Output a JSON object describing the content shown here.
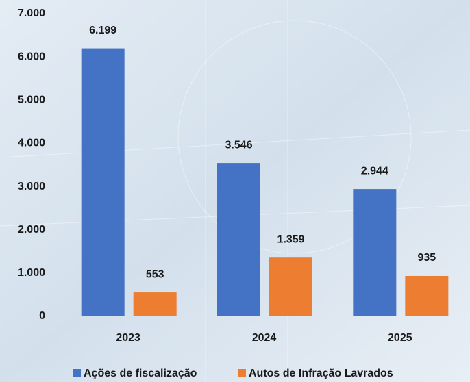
{
  "chart_data": {
    "type": "bar",
    "categories": [
      "2023",
      "2024",
      "2025"
    ],
    "series": [
      {
        "name": "Ações de fiscalização",
        "color": "#4472c4",
        "values": [
          6199,
          3546,
          2944
        ],
        "value_labels": [
          "6.199",
          "3.546",
          "2.944"
        ]
      },
      {
        "name": "Autos de Infração Lavrados",
        "color": "#ed7d31",
        "values": [
          553,
          1359,
          935
        ],
        "value_labels": [
          "553",
          "1.359",
          "935"
        ]
      }
    ],
    "ylim": [
      0,
      7000
    ],
    "yticks": [
      0,
      {
        "value": 1000,
        "label": "1.000"
      },
      {
        "value": 2000,
        "label": "2.000"
      },
      {
        "value": 3000,
        "label": "3.000"
      },
      {
        "value": 4000,
        "label": "4.000"
      },
      {
        "value": 5000,
        "label": "5.000"
      },
      {
        "value": 6000,
        "label": "6.000"
      },
      {
        "value": 7000,
        "label": "7.000"
      }
    ],
    "grid": false,
    "legend": "bottom"
  }
}
